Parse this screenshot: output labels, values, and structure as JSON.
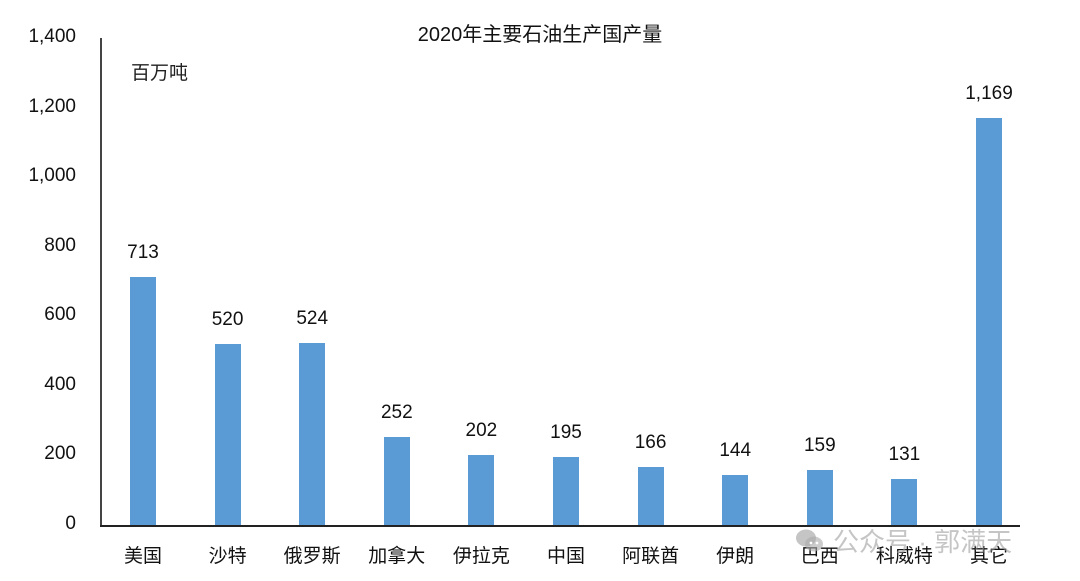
{
  "chart_data": {
    "type": "bar",
    "title": "2020年主要石油生产国产量",
    "unit_label": "百万吨",
    "xlabel": "",
    "ylabel": "百万吨",
    "ylim": [
      0,
      1400
    ],
    "yticks": [
      "0",
      "200",
      "400",
      "600",
      "800",
      "1,000",
      "1,200",
      "1,400"
    ],
    "grid": false,
    "legend": null,
    "categories": [
      "美国",
      "沙特",
      "俄罗斯",
      "加拿大",
      "伊拉克",
      "中国",
      "阿联酋",
      "伊朗",
      "巴西",
      "科威特",
      "其它"
    ],
    "values": [
      713,
      520,
      524,
      252,
      202,
      195,
      166,
      144,
      159,
      131,
      1169
    ],
    "value_labels": [
      "713",
      "520",
      "524",
      "252",
      "202",
      "195",
      "166",
      "144",
      "159",
      "131",
      "1,169"
    ],
    "bar_color": "#5b9bd5"
  },
  "watermark": {
    "text": "公众号 · 郭满天",
    "icon": "wechat-icon"
  }
}
